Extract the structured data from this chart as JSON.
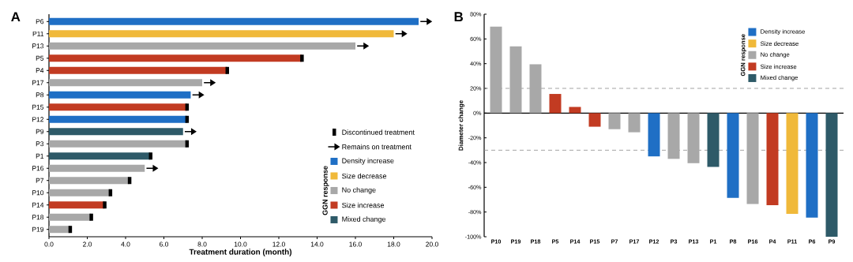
{
  "chart_data": [
    {
      "type": "bar",
      "orientation": "horizontal",
      "title": "A",
      "xlabel": "Treatment duration (month)",
      "categories": [
        "P6",
        "P11",
        "P13",
        "P5",
        "P4",
        "P17",
        "P8",
        "P15",
        "P12",
        "P9",
        "P3",
        "P1",
        "P16",
        "P7",
        "P10",
        "P14",
        "P18",
        "P19"
      ],
      "xlim": [
        0,
        20
      ],
      "xticks": [
        {
          "value": 0,
          "label": "0.0"
        },
        {
          "value": 2,
          "label": "2.0"
        },
        {
          "value": 4,
          "label": "4.0"
        },
        {
          "value": 6,
          "label": "6.0"
        },
        {
          "value": 8,
          "label": "8.0"
        },
        {
          "value": 10,
          "label": "10.0"
        },
        {
          "value": 12,
          "label": "12.0"
        },
        {
          "value": 14,
          "label": "14.0"
        },
        {
          "value": 16,
          "label": "16.0"
        },
        {
          "value": 18,
          "label": "18.0"
        },
        {
          "value": 20,
          "label": "20.0"
        }
      ],
      "legend": "bottom right",
      "legend_title": "GGN response",
      "series": [
        {
          "name": "Discontinued treatment",
          "type": "scatter",
          "marker": "square",
          "color": "#000000",
          "values": [
            null,
            null,
            null,
            13.2,
            9.3,
            null,
            null,
            7.2,
            7.2,
            null,
            7.2,
            5.3,
            null,
            4.2,
            3.2,
            2.9,
            2.2,
            1.1
          ]
        },
        {
          "name": "Remains on treatment",
          "type": "scatter",
          "color": "#000000",
          "values": [
            19.7,
            18.4,
            16.4,
            null,
            null,
            8.4,
            7.8,
            null,
            null,
            7.4,
            null,
            null,
            5.4,
            null,
            null,
            null,
            null,
            null
          ]
        },
        {
          "name": "Density increase",
          "color": "#1f6fc5",
          "values": [
            19.3,
            null,
            null,
            null,
            null,
            null,
            7.4,
            null,
            7.2,
            null,
            null,
            null,
            null,
            null,
            null,
            null,
            null,
            null
          ]
        },
        {
          "name": "Size decrease",
          "color": "#f0b93a",
          "values": [
            null,
            18.0,
            null,
            null,
            null,
            null,
            null,
            null,
            null,
            null,
            null,
            null,
            null,
            null,
            null,
            null,
            null,
            null
          ]
        },
        {
          "name": "No change",
          "color": "#a8a8a8",
          "values": [
            null,
            null,
            16.0,
            null,
            null,
            8.0,
            null,
            null,
            null,
            null,
            7.2,
            null,
            5.0,
            4.2,
            3.2,
            null,
            2.2,
            1.1
          ]
        },
        {
          "name": "Size increase",
          "color": "#c23b22",
          "values": [
            null,
            null,
            null,
            13.2,
            9.3,
            null,
            null,
            7.2,
            null,
            null,
            null,
            null,
            null,
            null,
            null,
            2.9,
            null,
            null
          ]
        },
        {
          "name": "Mixed change",
          "color": "#2e5a68",
          "values": [
            null,
            null,
            null,
            null,
            null,
            null,
            null,
            null,
            null,
            7.0,
            null,
            5.3,
            null,
            null,
            null,
            null,
            null,
            null
          ]
        }
      ]
    },
    {
      "type": "bar",
      "title": "B",
      "ylabel": "Diameter change",
      "categories": [
        "P10",
        "P19",
        "P18",
        "P5",
        "P14",
        "P15",
        "P7",
        "P17",
        "P12",
        "P3",
        "P13",
        "P1",
        "P8",
        "P16",
        "P4",
        "P11",
        "P6",
        "P9"
      ],
      "ylim": [
        -100,
        80
      ],
      "yticks": [
        {
          "value": -100,
          "label": "-100%"
        },
        {
          "value": -80,
          "label": "-80%"
        },
        {
          "value": -60,
          "label": "-60%"
        },
        {
          "value": -40,
          "label": "-40%"
        },
        {
          "value": -20,
          "label": "-20%"
        },
        {
          "value": 0,
          "label": "0%"
        },
        {
          "value": 20,
          "label": "20%"
        },
        {
          "value": 40,
          "label": "40%"
        },
        {
          "value": 60,
          "label": "60%"
        },
        {
          "value": 80,
          "label": "80%"
        }
      ],
      "ref_lines": [
        {
          "axis": "y",
          "value": 20,
          "line_style": "dashed",
          "color": "#8c8c8c"
        },
        {
          "axis": "y",
          "value": -30,
          "line_style": "dashed",
          "color": "#8c8c8c"
        }
      ],
      "legend": "top right",
      "legend_title": "GGN response",
      "series": [
        {
          "name": "Density increase",
          "color": "#1f6fc5",
          "values": [
            null,
            null,
            null,
            null,
            null,
            null,
            null,
            null,
            -35,
            null,
            null,
            null,
            -68.5,
            null,
            null,
            null,
            -84.5,
            null
          ]
        },
        {
          "name": "Size decrease",
          "color": "#f0b93a",
          "values": [
            null,
            null,
            null,
            null,
            null,
            null,
            null,
            null,
            null,
            null,
            null,
            null,
            null,
            null,
            null,
            -81.5,
            null,
            null
          ]
        },
        {
          "name": "No change",
          "color": "#a8a8a8",
          "values": [
            70,
            54,
            39.5,
            null,
            null,
            null,
            -13,
            -15.5,
            null,
            -37,
            -40.5,
            null,
            null,
            -73.5,
            null,
            null,
            null,
            null
          ]
        },
        {
          "name": "Size increase",
          "color": "#c23b22",
          "values": [
            null,
            null,
            null,
            15.5,
            5,
            -11,
            null,
            null,
            null,
            null,
            null,
            null,
            null,
            null,
            -74.5,
            null,
            null,
            null
          ]
        },
        {
          "name": "Mixed change",
          "color": "#2e5a68",
          "values": [
            null,
            null,
            null,
            null,
            null,
            null,
            null,
            null,
            null,
            null,
            null,
            -43.5,
            null,
            null,
            null,
            null,
            null,
            -100
          ]
        }
      ]
    }
  ]
}
